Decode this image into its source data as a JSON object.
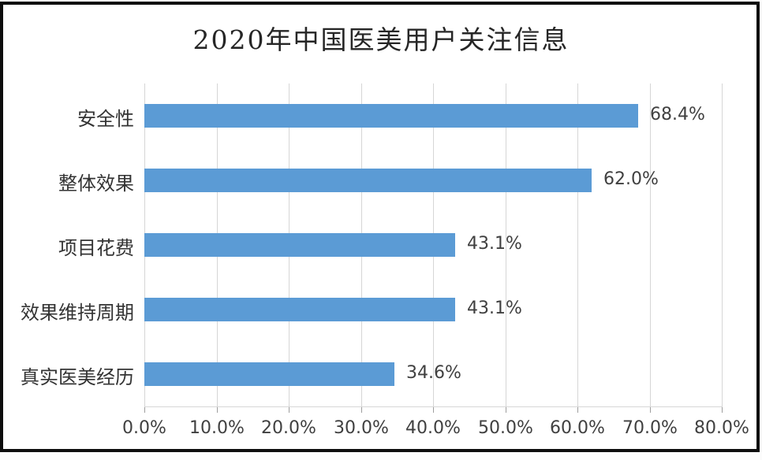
{
  "chart_data": {
    "type": "bar",
    "orientation": "horizontal",
    "title": "2020年中国医美用户关注信息",
    "categories": [
      "安全性",
      "整体效果",
      "项目花费",
      "效果维持周期",
      "真实医美经历"
    ],
    "values": [
      68.4,
      62.0,
      43.1,
      43.1,
      34.6
    ],
    "value_labels": [
      "68.4%",
      "62.0%",
      "43.1%",
      "43.1%",
      "34.6%"
    ],
    "x_tick_labels": [
      "0.0%",
      "10.0%",
      "20.0%",
      "30.0%",
      "40.0%",
      "50.0%",
      "60.0%",
      "70.0%",
      "80.0%"
    ],
    "x_tick_values": [
      0,
      10,
      20,
      30,
      40,
      50,
      60,
      70,
      80
    ],
    "xlim": [
      0,
      80
    ],
    "xlabel": "",
    "ylabel": "",
    "grid": "vertical",
    "legend_position": "none",
    "bar_color": "#5b9bd5",
    "gridline_color": "#d6d6d6",
    "frame_border_color": "#0d0d0d",
    "label_color": "#404040"
  }
}
